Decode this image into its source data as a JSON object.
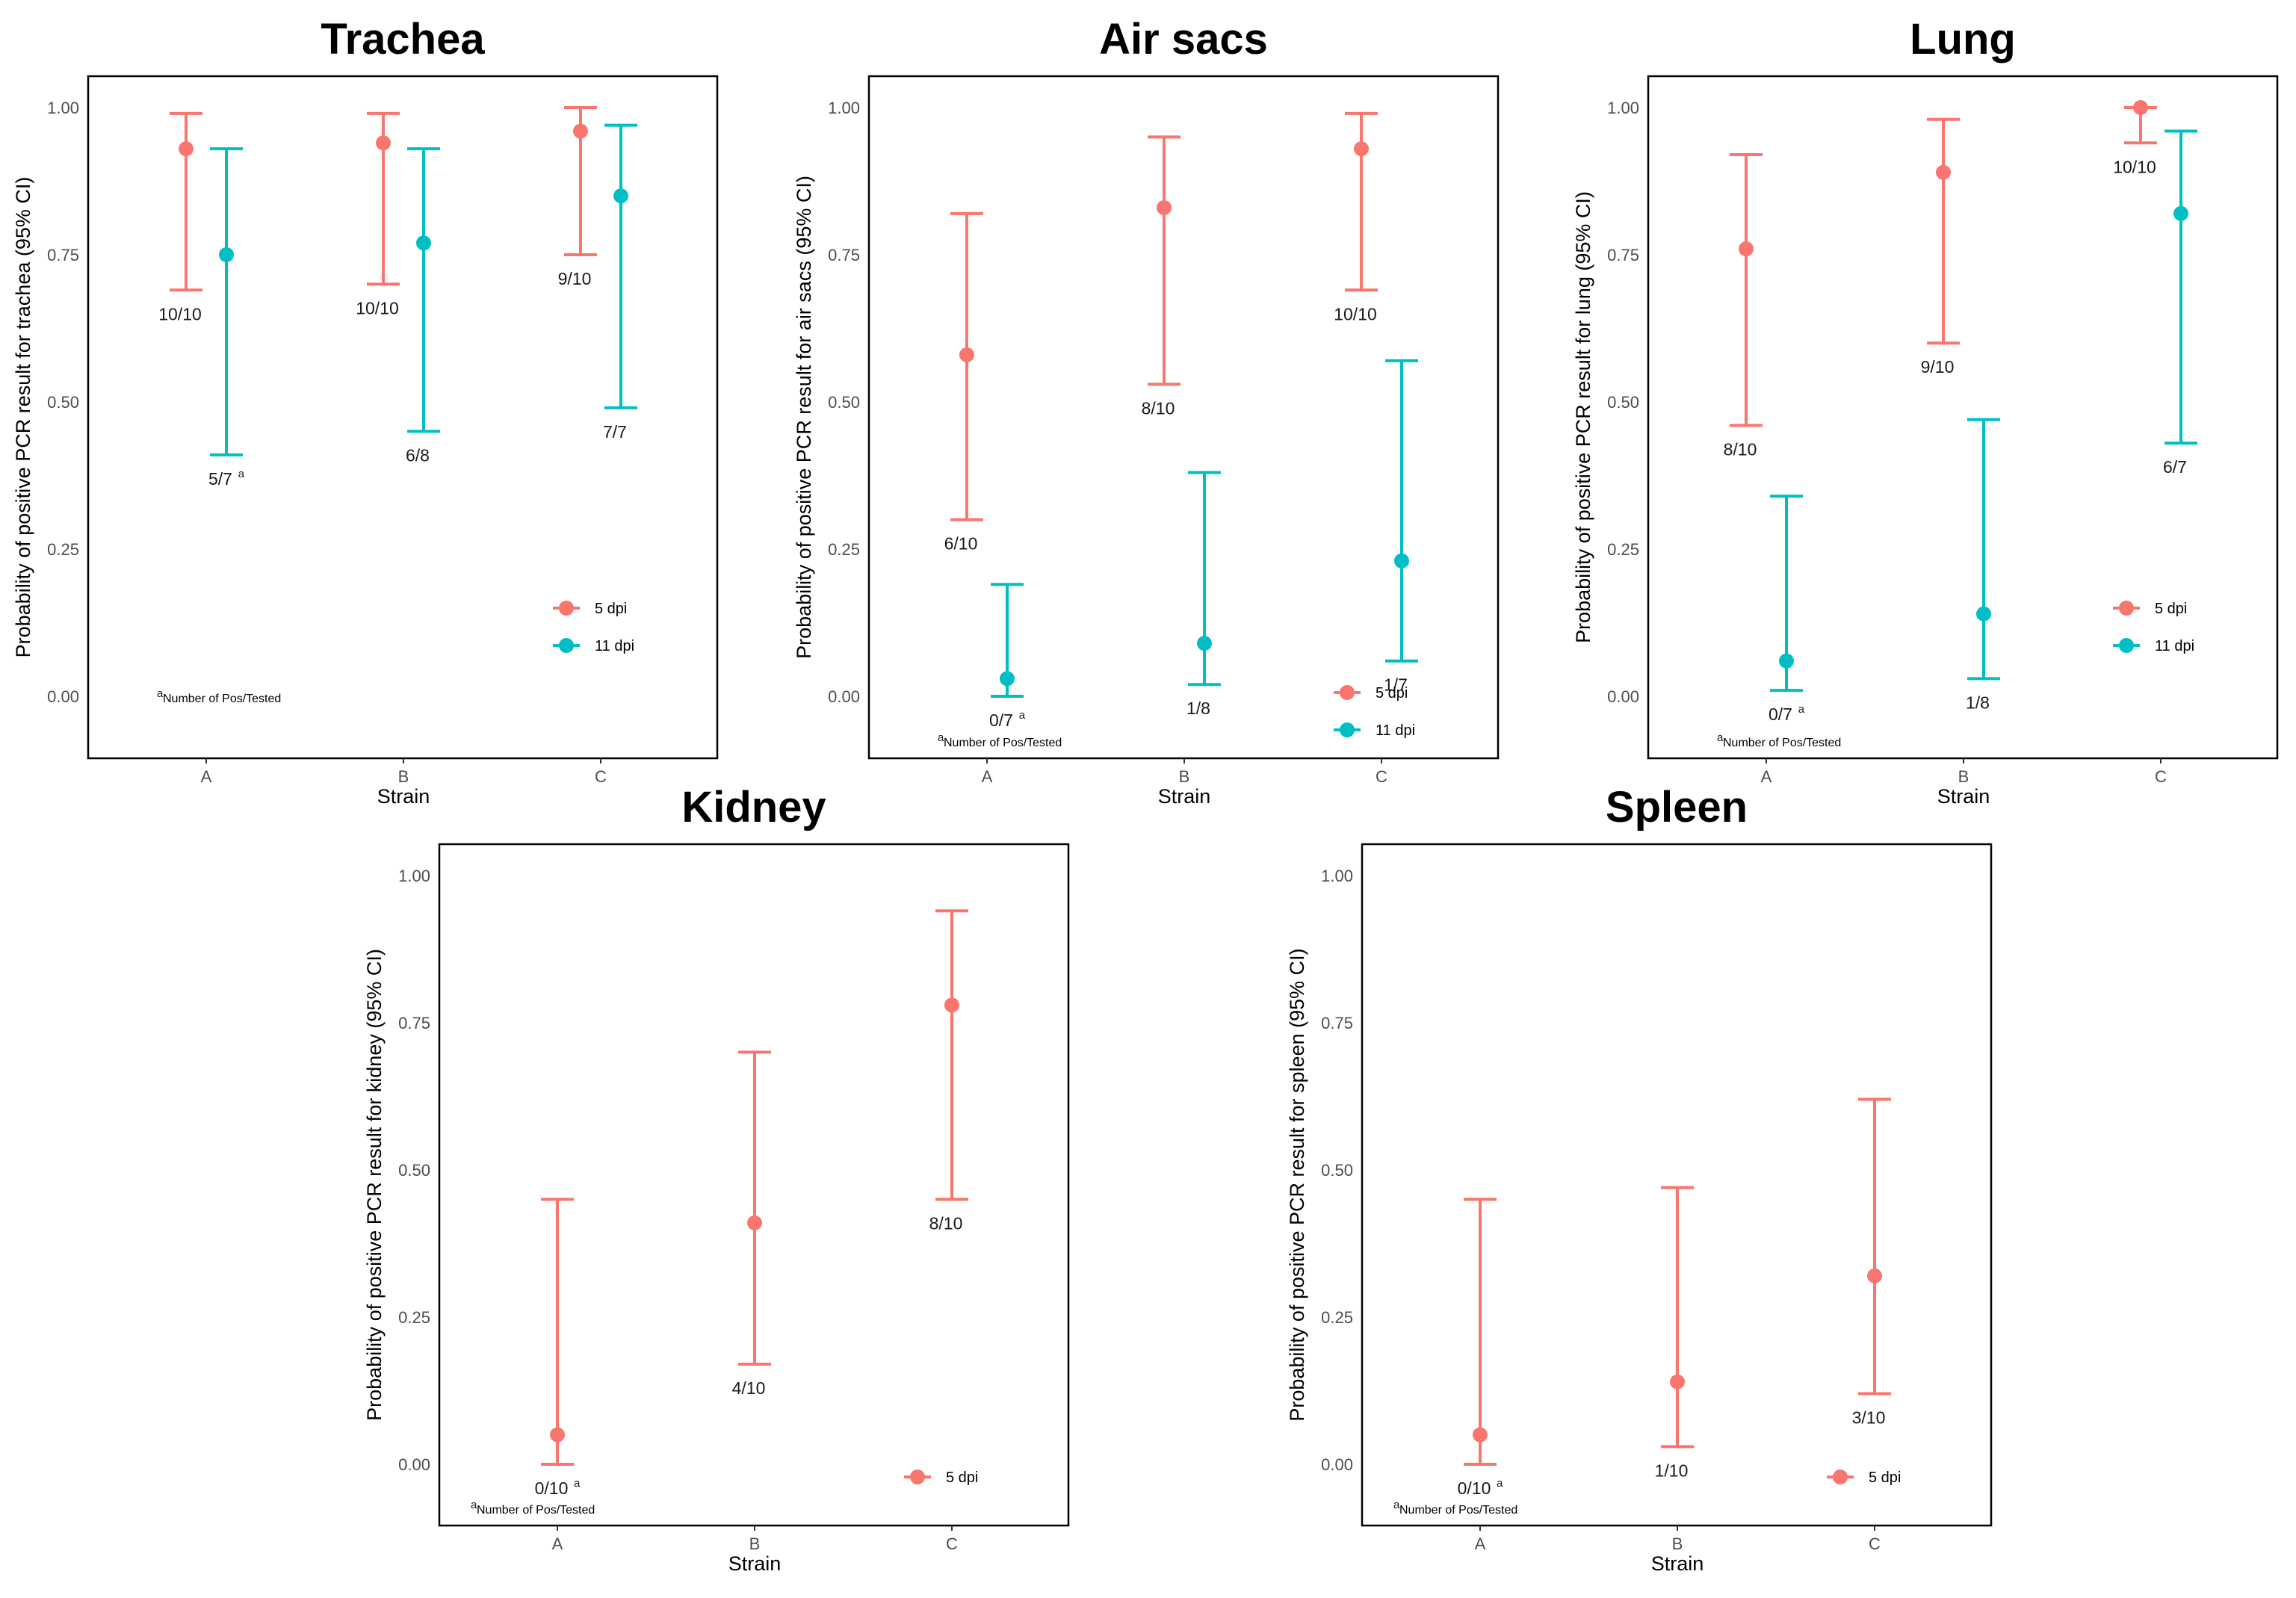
{
  "colors": {
    "series_5dpi": "#F8766D",
    "series_11dpi": "#00BFC4"
  },
  "footnote": {
    "mark": "a",
    "text": "Number of Pos/Tested"
  },
  "chart_data": [
    {
      "type": "scatter",
      "title": "Trachea",
      "xlabel": "Strain",
      "ylabel": "Probability of positive PCR result for trachea (95% CI)",
      "categories": [
        "A",
        "B",
        "C"
      ],
      "ylim": [
        -0.1,
        1.05
      ],
      "yticks": [
        "0.00",
        "0.25",
        "0.50",
        "0.75",
        "1.00"
      ],
      "legend": "bottom-right",
      "series": [
        {
          "name": "5 dpi",
          "color": "#F8766D",
          "values": [
            0.93,
            0.94,
            0.96
          ],
          "lower": [
            0.69,
            0.7,
            0.75
          ],
          "upper": [
            0.99,
            0.99,
            1.0
          ],
          "labels": [
            "10/10",
            "10/10",
            "9/10"
          ]
        },
        {
          "name": "11 dpi",
          "color": "#00BFC4",
          "values": [
            0.75,
            0.77,
            0.85
          ],
          "lower": [
            0.41,
            0.45,
            0.49
          ],
          "upper": [
            0.93,
            0.93,
            0.97
          ],
          "labels": [
            "5/7",
            "6/8",
            "7/7"
          ]
        }
      ]
    },
    {
      "type": "scatter",
      "title": "Air sacs",
      "xlabel": "Strain",
      "ylabel": "Probability of positive PCR result for air sacs (95% CI)",
      "categories": [
        "A",
        "B",
        "C"
      ],
      "ylim": [
        -0.1,
        1.05
      ],
      "yticks": [
        "0.00",
        "0.25",
        "0.50",
        "0.75",
        "1.00"
      ],
      "legend": "bottom-right",
      "series": [
        {
          "name": "5 dpi",
          "color": "#F8766D",
          "values": [
            0.58,
            0.83,
            0.93
          ],
          "lower": [
            0.3,
            0.53,
            0.69
          ],
          "upper": [
            0.82,
            0.95,
            0.99
          ],
          "labels": [
            "6/10",
            "8/10",
            "10/10"
          ]
        },
        {
          "name": "11 dpi",
          "color": "#00BFC4",
          "values": [
            0.03,
            0.09,
            0.23
          ],
          "lower": [
            0.0,
            0.02,
            0.06
          ],
          "upper": [
            0.19,
            0.38,
            0.57
          ],
          "labels": [
            "0/7",
            "1/8",
            "1/7"
          ]
        }
      ]
    },
    {
      "type": "scatter",
      "title": "Lung",
      "xlabel": "Strain",
      "ylabel": "Probability of positive PCR result for lung (95% CI)",
      "categories": [
        "A",
        "B",
        "C"
      ],
      "ylim": [
        -0.1,
        1.05
      ],
      "yticks": [
        "0.00",
        "0.25",
        "0.50",
        "0.75",
        "1.00"
      ],
      "legend": "bottom-right",
      "series": [
        {
          "name": "5 dpi",
          "color": "#F8766D",
          "values": [
            0.76,
            0.89,
            1.0
          ],
          "lower": [
            0.46,
            0.6,
            0.94
          ],
          "upper": [
            0.92,
            0.98,
            1.0
          ],
          "labels": [
            "8/10",
            "9/10",
            "10/10"
          ]
        },
        {
          "name": "11 dpi",
          "color": "#00BFC4",
          "values": [
            0.06,
            0.14,
            0.82
          ],
          "lower": [
            0.01,
            0.03,
            0.43
          ],
          "upper": [
            0.34,
            0.47,
            0.96
          ],
          "labels": [
            "0/7",
            "1/8",
            "6/7"
          ]
        }
      ]
    },
    {
      "type": "scatter",
      "title": "Kidney",
      "xlabel": "Strain",
      "ylabel": "Probability of positive PCR result for kidney (95% CI)",
      "categories": [
        "A",
        "B",
        "C"
      ],
      "ylim": [
        -0.1,
        1.05
      ],
      "yticks": [
        "0.00",
        "0.25",
        "0.50",
        "0.75",
        "1.00"
      ],
      "legend": "bottom-right",
      "series": [
        {
          "name": "5 dpi",
          "color": "#F8766D",
          "values": [
            0.05,
            0.41,
            0.78
          ],
          "lower": [
            0.0,
            0.17,
            0.45
          ],
          "upper": [
            0.45,
            0.7,
            0.94
          ],
          "labels": [
            "0/10",
            "4/10",
            "8/10"
          ]
        }
      ]
    },
    {
      "type": "scatter",
      "title": "Spleen",
      "xlabel": "Strain",
      "ylabel": "Probability of positive PCR result for spleen (95% CI)",
      "categories": [
        "A",
        "B",
        "C"
      ],
      "ylim": [
        -0.1,
        1.05
      ],
      "yticks": [
        "0.00",
        "0.25",
        "0.50",
        "0.75",
        "1.00"
      ],
      "legend": "bottom-right",
      "series": [
        {
          "name": "5 dpi",
          "color": "#F8766D",
          "values": [
            0.05,
            0.14,
            0.32
          ],
          "lower": [
            0.0,
            0.03,
            0.12
          ],
          "upper": [
            0.45,
            0.47,
            0.62
          ],
          "labels": [
            "0/10",
            "1/10",
            "3/10"
          ]
        }
      ]
    }
  ]
}
